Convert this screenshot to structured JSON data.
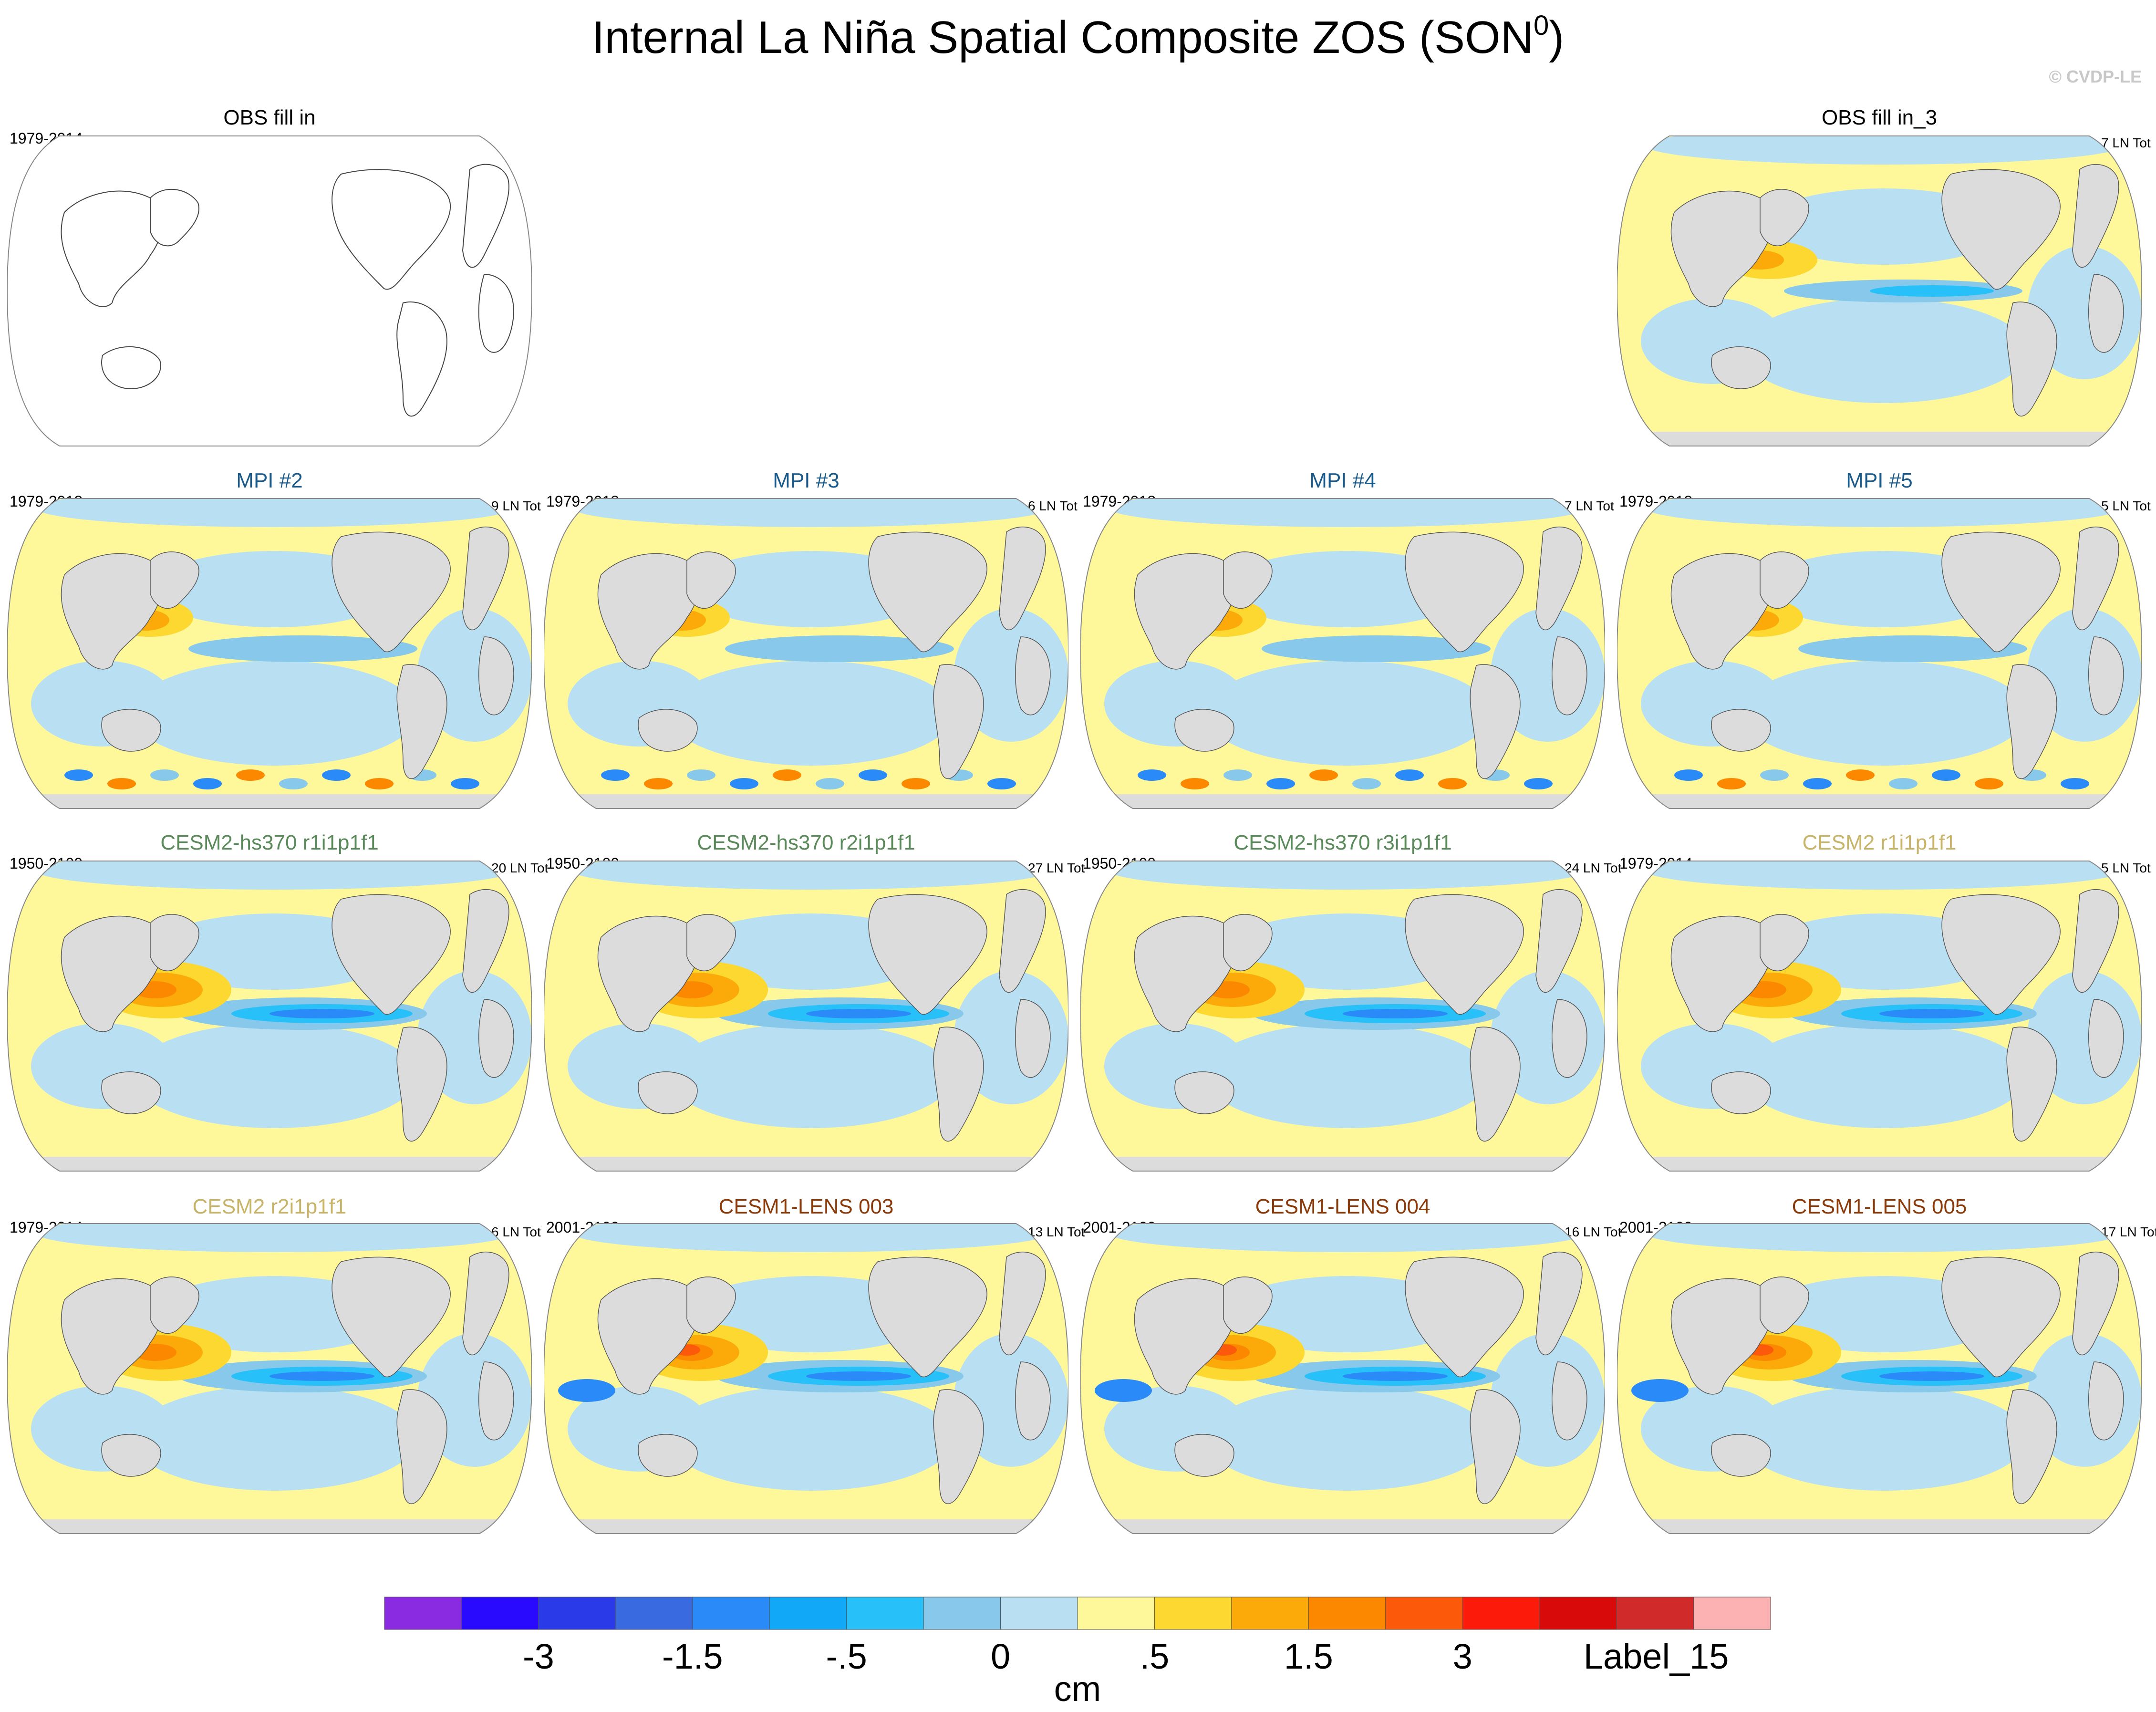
{
  "title_main": "Internal La Niña Spatial Composite ZOS (SON",
  "title_sup": "0",
  "title_end": ")",
  "copyright": "© CVDP-LE",
  "panels": [
    {
      "title": "OBS fill in",
      "left": "1979-2014",
      "right": "",
      "color": "#000000",
      "style": "outline"
    },
    {
      "title": "OBS fill in_3",
      "left": "",
      "right": "7 LN Tot",
      "color": "#000000",
      "style": "obs3"
    },
    {
      "title": "MPI #2",
      "left": "1979-2018",
      "right": "9 LN Tot",
      "color": "#1a5a8a",
      "style": "mpi"
    },
    {
      "title": "MPI #3",
      "left": "1979-2018",
      "right": "6 LN Tot",
      "color": "#1a5a8a",
      "style": "mpi"
    },
    {
      "title": "MPI #4",
      "left": "1979-2018",
      "right": "7 LN Tot",
      "color": "#1a5a8a",
      "style": "mpi"
    },
    {
      "title": "MPI #5",
      "left": "1979-2018",
      "right": "5 LN Tot",
      "color": "#1a5a8a",
      "style": "mpi"
    },
    {
      "title": "CESM2-hs370 r1i1p1f1",
      "left": "1950-2100",
      "right": "20 LN Tot",
      "color": "#5a8a5a",
      "style": "cesm"
    },
    {
      "title": "CESM2-hs370 r2i1p1f1",
      "left": "1950-2100",
      "right": "27 LN Tot",
      "color": "#5a8a5a",
      "style": "cesm"
    },
    {
      "title": "CESM2-hs370 r3i1p1f1",
      "left": "1950-2100",
      "right": "24 LN Tot",
      "color": "#5a8a5a",
      "style": "cesm"
    },
    {
      "title": "CESM2 r1i1p1f1",
      "left": "1979-2014",
      "right": "5 LN Tot",
      "color": "#c8b468",
      "style": "cesm"
    },
    {
      "title": "CESM2 r2i1p1f1",
      "left": "1979-2014",
      "right": "6 LN Tot",
      "color": "#c8b468",
      "style": "cesm"
    },
    {
      "title": "CESM1-LENS 003",
      "left": "2001-2100",
      "right": "13 LN Tot",
      "color": "#8b3a0a",
      "style": "lens"
    },
    {
      "title": "CESM1-LENS 004",
      "left": "2001-2100",
      "right": "16 LN Tot",
      "color": "#8b3a0a",
      "style": "lens"
    },
    {
      "title": "CESM1-LENS 005",
      "left": "2001-2100",
      "right": "17 LN Tot",
      "color": "#8b3a0a",
      "style": "lens"
    }
  ],
  "colorbar": {
    "colors": [
      "#8a2be2",
      "#2a0aff",
      "#2a3ae8",
      "#3a6ae0",
      "#2a8af8",
      "#12a8f8",
      "#28c0f8",
      "#88c8ea",
      "#b8e0f2",
      "#fef89a",
      "#fcd830",
      "#fcaa0a",
      "#fc8800",
      "#fc5a0a",
      "#fc1a0a",
      "#d80a0a",
      "#d02a2a",
      "#fcb2b2"
    ],
    "labels": [
      "-3",
      "-1.5",
      "-.5",
      "0",
      ".5",
      "1.5",
      "3",
      "Label_15"
    ],
    "units": "cm"
  }
}
